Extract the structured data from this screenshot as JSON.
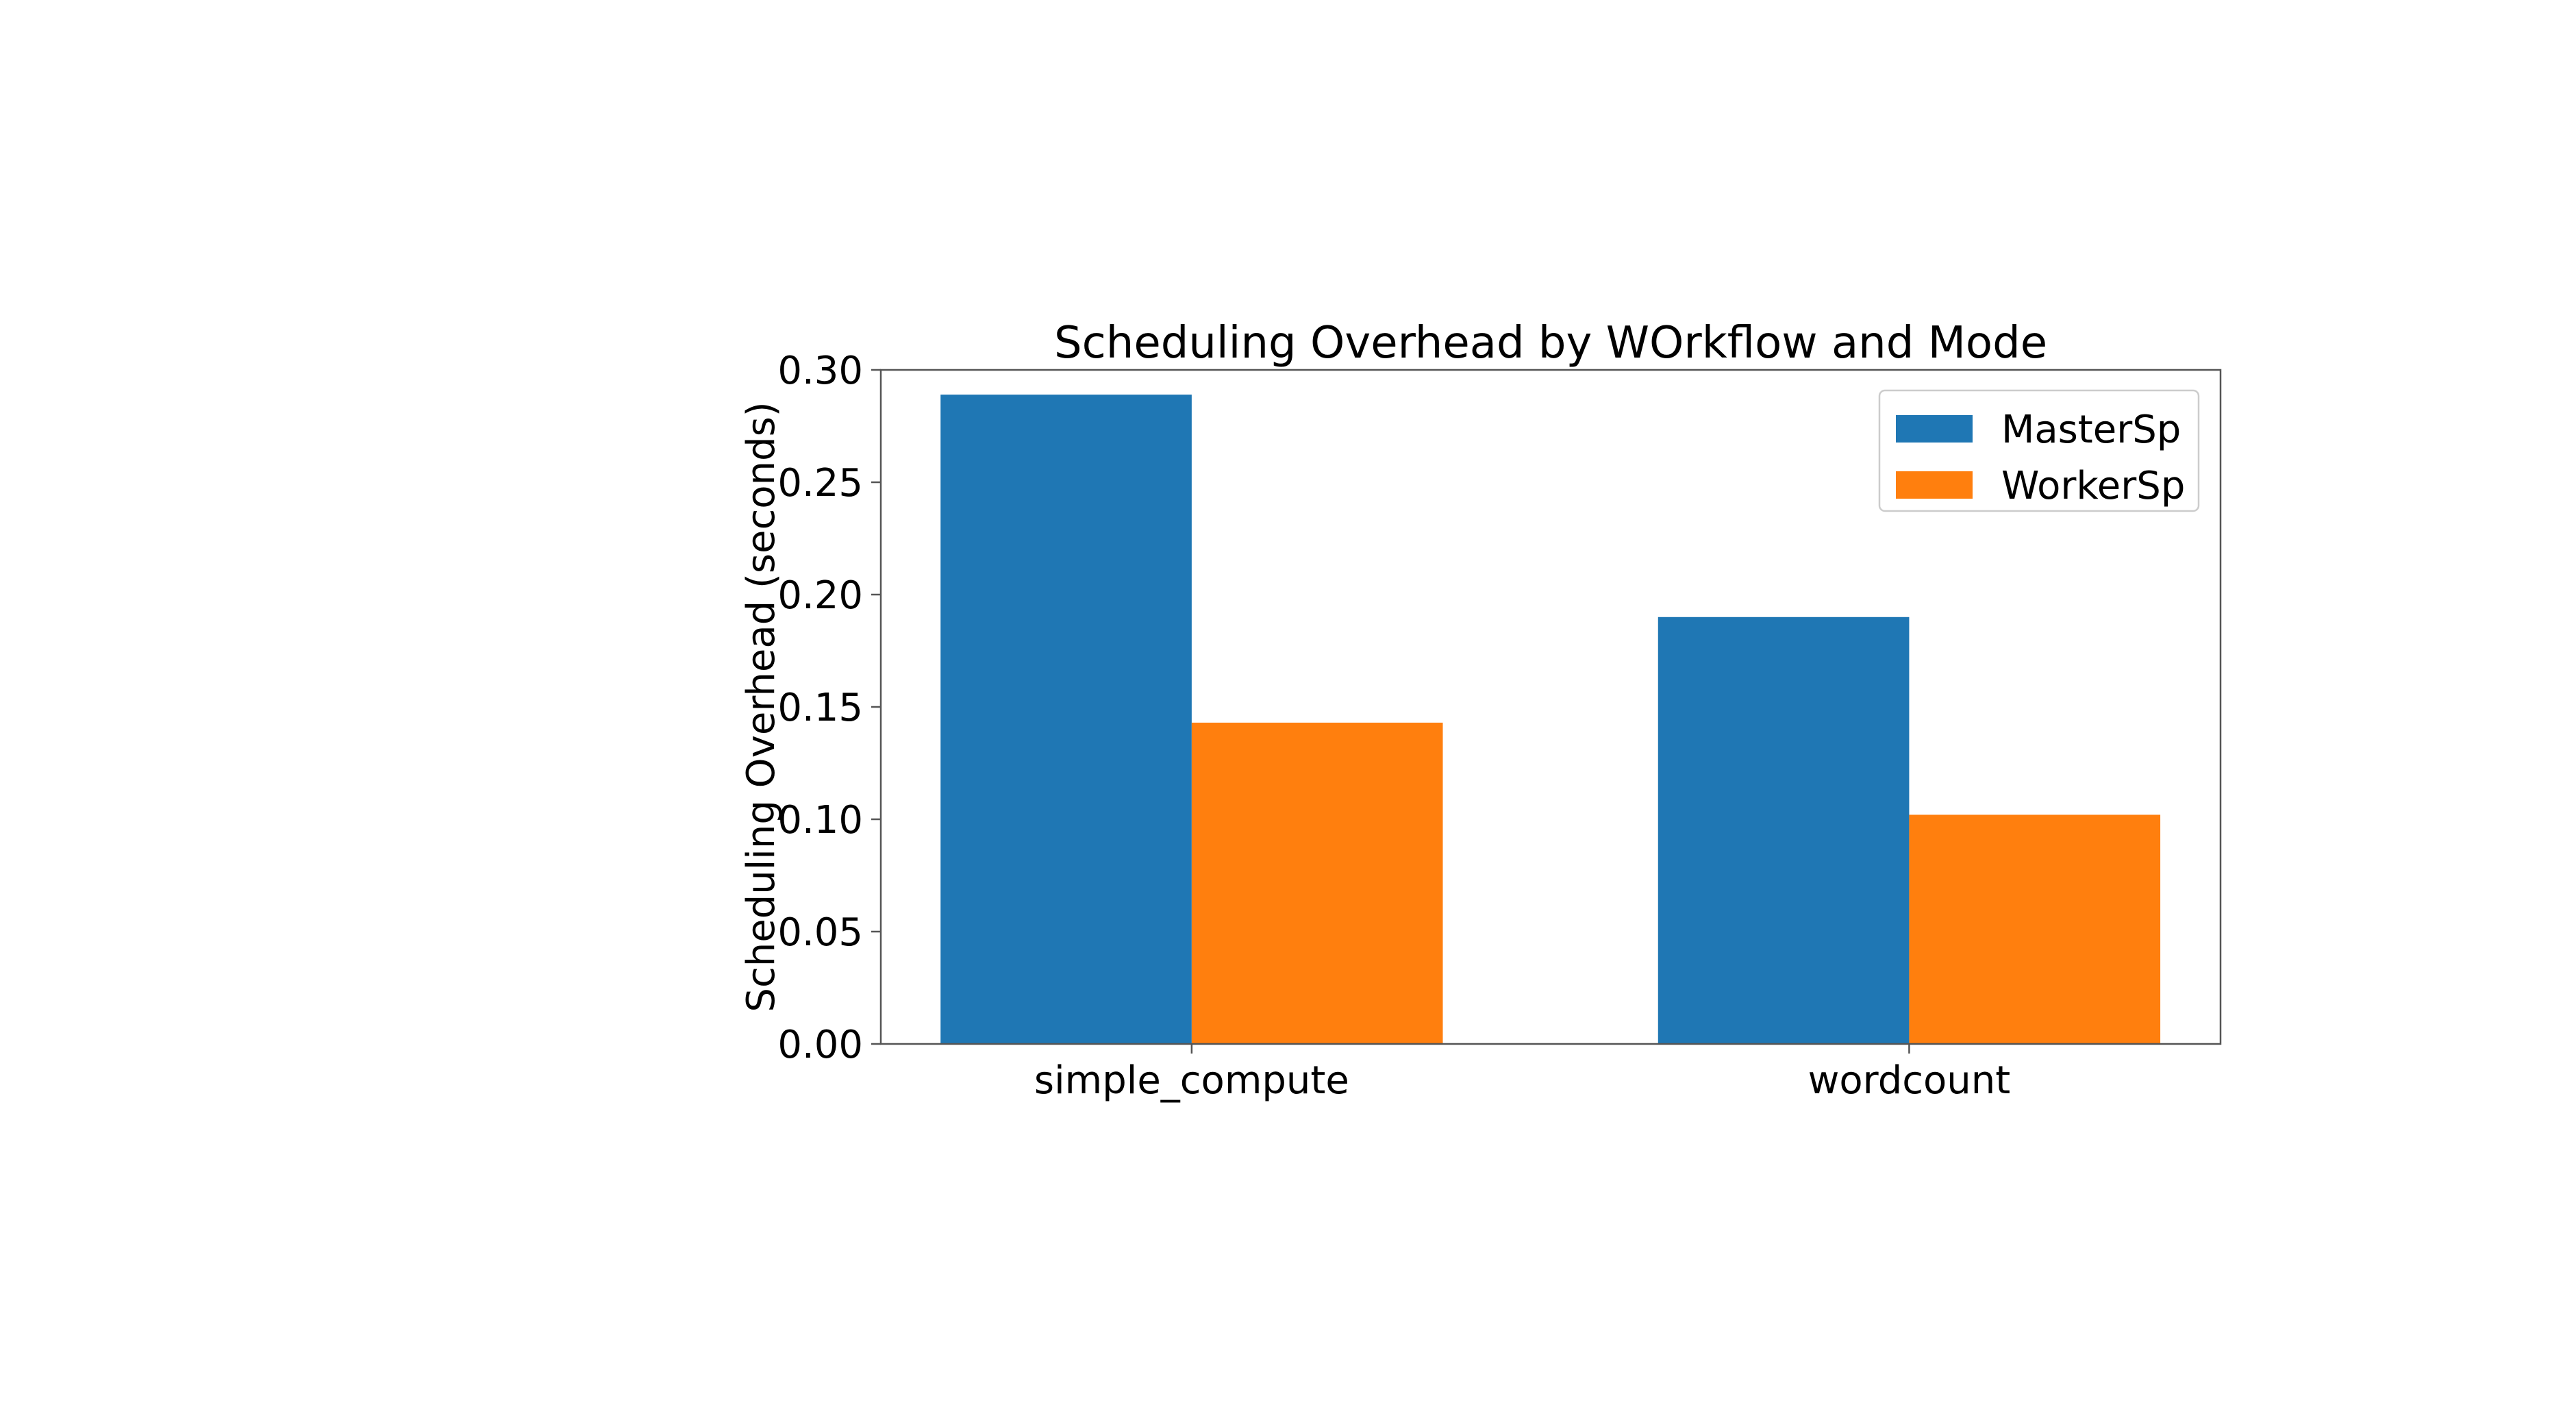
{
  "chart_data": {
    "type": "bar",
    "title": "Scheduling Overhead by WOrkflow and Mode",
    "xlabel": "",
    "ylabel": "Scheduling Overhead (seconds)",
    "categories": [
      "simple_compute",
      "wordcount"
    ],
    "series": [
      {
        "name": "MasterSp",
        "values": [
          0.289,
          0.19
        ],
        "color": "#1f77b4"
      },
      {
        "name": "WorkerSp",
        "values": [
          0.143,
          0.102
        ],
        "color": "#ff7f0e"
      }
    ],
    "ylim": [
      0,
      0.3
    ],
    "yticks": [
      "0.00",
      "0.05",
      "0.10",
      "0.15",
      "0.20",
      "0.25",
      "0.30"
    ],
    "grid": false,
    "legend_position": "top-right"
  }
}
